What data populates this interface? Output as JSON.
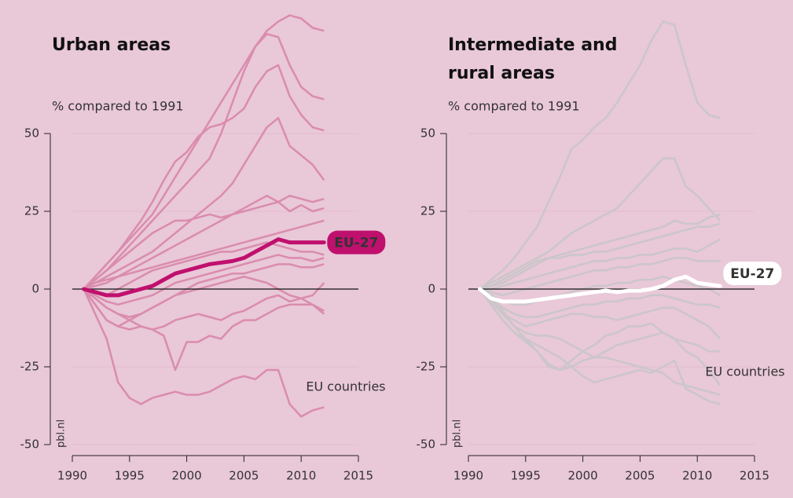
{
  "chart_data": [
    {
      "type": "line",
      "title": "Urban areas",
      "subtitle": "% compared to 1991",
      "annotation": "EU countries",
      "source": "pbl.nl",
      "x": [
        1991,
        1992,
        1993,
        1994,
        1995,
        1996,
        1997,
        1998,
        1999,
        2000,
        2001,
        2002,
        2003,
        2004,
        2005,
        2006,
        2007,
        2008,
        2009,
        2010,
        2011,
        2012
      ],
      "xlim": [
        1990,
        2015
      ],
      "xticks": [
        1990,
        1995,
        2000,
        2005,
        2010,
        2015
      ],
      "ylim": [
        -50,
        50
      ],
      "yticks": [
        -50,
        -25,
        0,
        25,
        50
      ],
      "grid": true,
      "countries": {
        "name": "EU countries",
        "color": "#da8cae",
        "values": [
          [
            0,
            4,
            8,
            12,
            16,
            20,
            24,
            30,
            36,
            42,
            48,
            54,
            60,
            66,
            72,
            78,
            83,
            86,
            88,
            87,
            84,
            83
          ],
          [
            0,
            3,
            6,
            10,
            14,
            18,
            22,
            26,
            30,
            34,
            38,
            42,
            50,
            60,
            70,
            78,
            82,
            81,
            72,
            65,
            62,
            61
          ],
          [
            0,
            4,
            8,
            12,
            17,
            22,
            28,
            35,
            41,
            44,
            49,
            52,
            53,
            55,
            58,
            65,
            70,
            72,
            62,
            56,
            52,
            51
          ],
          [
            0,
            2,
            4,
            6,
            8,
            10,
            12,
            15,
            18,
            21,
            24,
            27,
            30,
            34,
            40,
            46,
            52,
            55,
            46,
            43,
            40,
            35
          ],
          [
            0,
            3,
            6,
            9,
            12,
            15,
            18,
            20,
            22,
            22,
            23,
            24,
            23,
            24,
            25,
            26,
            27,
            28,
            30,
            29,
            28,
            29
          ],
          [
            0,
            1,
            2,
            4,
            6,
            8,
            10,
            12,
            14,
            16,
            18,
            20,
            22,
            24,
            26,
            28,
            30,
            28,
            25,
            27,
            25,
            26
          ],
          [
            0,
            2,
            3,
            4,
            5,
            6,
            7,
            8,
            9,
            10,
            11,
            12,
            13,
            14,
            15,
            16,
            17,
            18,
            19,
            20,
            21,
            22
          ],
          [
            0,
            -1,
            -2,
            0,
            2,
            4,
            6,
            7,
            8,
            9,
            10,
            11,
            12,
            12,
            13,
            14,
            15,
            14,
            13,
            12,
            12,
            11
          ],
          [
            0,
            -2,
            -4,
            -5,
            -4,
            -3,
            -2,
            0,
            2,
            3,
            4,
            5,
            6,
            7,
            8,
            9,
            10,
            11,
            10,
            10,
            9,
            10
          ],
          [
            0,
            -3,
            -6,
            -8,
            -9,
            -8,
            -6,
            -4,
            -2,
            0,
            2,
            3,
            4,
            5,
            5,
            6,
            7,
            8,
            8,
            7,
            7,
            8
          ],
          [
            0,
            -5,
            -10,
            -12,
            -10,
            -8,
            -6,
            -4,
            -2,
            -1,
            0,
            1,
            2,
            3,
            4,
            3,
            2,
            0,
            -2,
            -3,
            -2,
            2
          ],
          [
            0,
            -3,
            -6,
            -8,
            -10,
            -12,
            -13,
            -12,
            -10,
            -9,
            -8,
            -9,
            -10,
            -8,
            -7,
            -5,
            -3,
            -2,
            -4,
            -3,
            -5,
            -8
          ],
          [
            0,
            -5,
            -10,
            -12,
            -13,
            -12,
            -13,
            -15,
            -26,
            -17,
            -17,
            -15,
            -16,
            -12,
            -10,
            -10,
            -8,
            -6,
            -5,
            -5,
            -5,
            -7
          ],
          [
            0,
            -8,
            -16,
            -30,
            -35,
            -37,
            -35,
            -34,
            -33,
            -34,
            -34,
            -33,
            -31,
            -29,
            -28,
            -29,
            -26,
            -26,
            -37,
            -41,
            -39,
            -38
          ]
        ]
      },
      "series": [
        {
          "name": "EU-27",
          "color": "#c0106e",
          "label_fill": "#c0106e",
          "label_color": "#ffffff",
          "values": [
            0,
            -1,
            -2,
            -2,
            -1,
            0,
            1,
            3,
            5,
            6,
            7,
            8,
            8.5,
            9,
            10,
            12,
            14,
            16,
            15,
            15,
            15,
            15
          ]
        }
      ]
    },
    {
      "type": "line",
      "title": "Intermediate and rural areas",
      "subtitle": "% compared to 1991",
      "annotation": "EU countries",
      "source": "pbl.nl",
      "x": [
        1991,
        1992,
        1993,
        1994,
        1995,
        1996,
        1997,
        1998,
        1999,
        2000,
        2001,
        2002,
        2003,
        2004,
        2005,
        2006,
        2007,
        2008,
        2009,
        2010,
        2011,
        2012
      ],
      "xlim": [
        1990,
        2015
      ],
      "xticks": [
        1990,
        1995,
        2000,
        2005,
        2010,
        2015
      ],
      "ylim": [
        -50,
        50
      ],
      "yticks": [
        -50,
        -25,
        0,
        25,
        50
      ],
      "grid": true,
      "countries": {
        "name": "EU countries",
        "color": "#cbc6c9",
        "values": [
          [
            0,
            3,
            6,
            10,
            15,
            20,
            28,
            36,
            45,
            48,
            52,
            55,
            60,
            66,
            72,
            80,
            86,
            85,
            72,
            60,
            56,
            55
          ],
          [
            0,
            2,
            4,
            6,
            8,
            10,
            12,
            15,
            18,
            20,
            22,
            24,
            26,
            30,
            34,
            38,
            42,
            42,
            33,
            30,
            26,
            22
          ],
          [
            0,
            1,
            2,
            4,
            6,
            8,
            10,
            11,
            12,
            13,
            14,
            15,
            16,
            17,
            18,
            19,
            20,
            22,
            21,
            21,
            23,
            24
          ],
          [
            0,
            1,
            3,
            5,
            7,
            9,
            10,
            10,
            11,
            11,
            12,
            12,
            13,
            14,
            15,
            16,
            17,
            18,
            19,
            20,
            20,
            21
          ],
          [
            0,
            0,
            1,
            2,
            3,
            4,
            5,
            6,
            7,
            8,
            9,
            9,
            10,
            10,
            11,
            11,
            12,
            13,
            13,
            12,
            14,
            16
          ],
          [
            0,
            -1,
            -2,
            -1,
            0,
            1,
            2,
            3,
            4,
            5,
            6,
            6,
            7,
            7,
            8,
            8,
            9,
            10,
            10,
            9,
            9,
            9
          ],
          [
            0,
            -2,
            -4,
            -5,
            -5,
            -4,
            -3,
            -2,
            -1,
            0,
            1,
            1,
            2,
            2,
            3,
            3,
            4,
            3,
            2,
            1,
            0,
            -2
          ],
          [
            0,
            -3,
            -6,
            -8,
            -9,
            -9,
            -8,
            -7,
            -6,
            -5,
            -5,
            -4,
            -4,
            -3,
            -3,
            -2,
            -2,
            -3,
            -4,
            -5,
            -5,
            -6
          ],
          [
            0,
            -4,
            -8,
            -10,
            -12,
            -11,
            -10,
            -9,
            -8,
            -8,
            -9,
            -9,
            -10,
            -9,
            -8,
            -7,
            -6,
            -6,
            -8,
            -10,
            -12,
            -16
          ],
          [
            0,
            -5,
            -10,
            -14,
            -17,
            -20,
            -24,
            -26,
            -25,
            -23,
            -22,
            -20,
            -18,
            -17,
            -16,
            -15,
            -14,
            -16,
            -20,
            -22,
            -26,
            -31
          ],
          [
            0,
            -3,
            -7,
            -12,
            -16,
            -20,
            -25,
            -26,
            -23,
            -20,
            -18,
            -15,
            -14,
            -12,
            -12,
            -11,
            -14,
            -16,
            -17,
            -18,
            -20,
            -20
          ],
          [
            0,
            -5,
            -10,
            -14,
            -16,
            -18,
            -20,
            -22,
            -25,
            -28,
            -30,
            -29,
            -28,
            -27,
            -26,
            -27,
            -25,
            -23,
            -32,
            -34,
            -36,
            -37
          ],
          [
            0,
            -4,
            -8,
            -12,
            -14,
            -15,
            -15,
            -16,
            -18,
            -20,
            -22,
            -22,
            -23,
            -24,
            -25,
            -26,
            -27,
            -30,
            -31,
            -32,
            -33,
            -34
          ]
        ]
      },
      "series": [
        {
          "name": "EU-27",
          "color": "#ffffff",
          "label_fill": "#ffffff",
          "label_color": "#c0106e",
          "values": [
            0,
            -3,
            -4,
            -4,
            -4,
            -3.5,
            -3,
            -2.5,
            -2,
            -1.5,
            -1,
            -0.5,
            -1,
            -0.5,
            -0.5,
            0,
            1,
            3,
            4,
            2,
            1.5,
            1
          ]
        }
      ]
    }
  ]
}
